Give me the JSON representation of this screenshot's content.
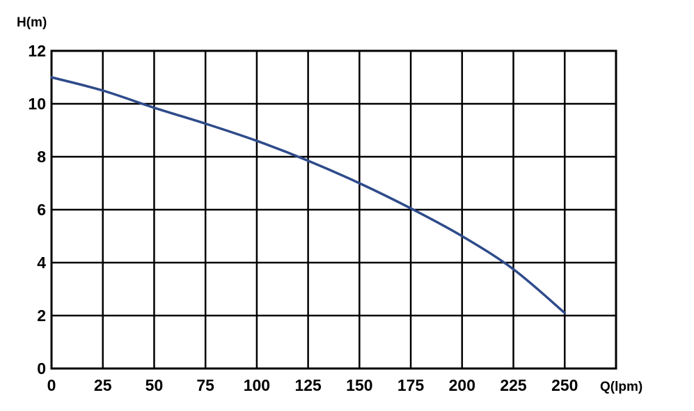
{
  "chart_data": {
    "type": "line",
    "title": "",
    "xlabel": "Q(lpm)",
    "ylabel": "H(m)",
    "xlim": [
      0,
      275
    ],
    "ylim": [
      0,
      12
    ],
    "xticks": [
      0,
      25,
      50,
      75,
      100,
      125,
      150,
      175,
      200,
      225,
      250
    ],
    "yticks": [
      0,
      2,
      4,
      6,
      8,
      10,
      12
    ],
    "x_tick_labels": [
      "0",
      "25",
      "50",
      "75",
      "100",
      "125",
      "150",
      "175",
      "200",
      "225",
      "250"
    ],
    "y_tick_labels": [
      "0",
      "2",
      "4",
      "6",
      "8",
      "10",
      "12"
    ],
    "grid": true,
    "series": [
      {
        "color": "#2e4b8a",
        "x": [
          0,
          25,
          50,
          75,
          100,
          125,
          150,
          175,
          200,
          225,
          250
        ],
        "y": [
          11.0,
          10.5,
          9.85,
          9.25,
          8.6,
          7.85,
          7.0,
          6.05,
          5.0,
          3.75,
          2.1
        ]
      }
    ]
  }
}
